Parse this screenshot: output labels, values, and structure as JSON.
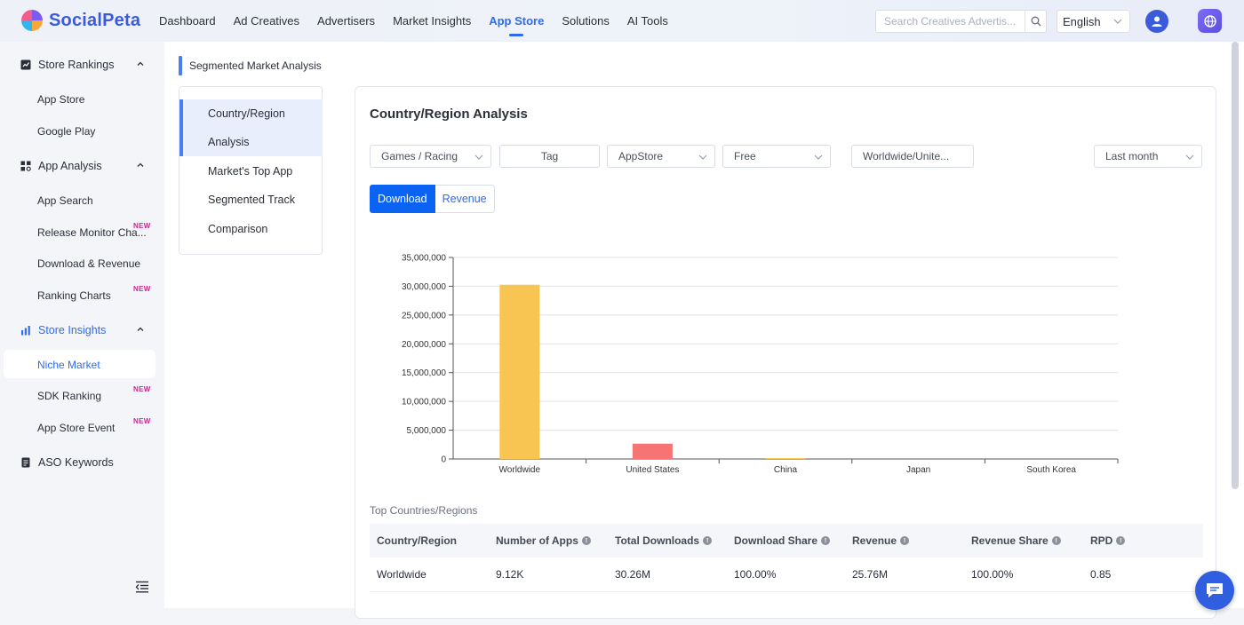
{
  "brand": {
    "name": "SocialPeta"
  },
  "nav": [
    {
      "label": "Dashboard",
      "active": false
    },
    {
      "label": "Ad Creatives",
      "active": false
    },
    {
      "label": "Advertisers",
      "active": false
    },
    {
      "label": "Market Insights",
      "active": false
    },
    {
      "label": "App Store",
      "active": true
    },
    {
      "label": "Solutions",
      "active": false
    },
    {
      "label": "AI Tools",
      "active": false
    }
  ],
  "search": {
    "placeholder": "Search Creatives Advertis...",
    "value": ""
  },
  "language": {
    "selected": "English"
  },
  "sidebar": {
    "store_rankings": {
      "label": "Store Rankings",
      "items": [
        "App Store",
        "Google Play"
      ]
    },
    "app_analysis": {
      "label": "App Analysis",
      "items": [
        "App Search",
        "Release Monitor Cha...",
        "Download & Revenue",
        "Ranking Charts"
      ]
    },
    "store_insights": {
      "label": "Store Insights",
      "items": [
        "Niche Market",
        "SDK Ranking",
        "App Store Event"
      ]
    },
    "aso": {
      "label": "ASO Keywords"
    },
    "new_badge": "NEW"
  },
  "page": {
    "title": "Segmented Market Analysis",
    "submenu": [
      "Country/Region",
      "Analysis",
      "Market's Top App",
      "Segmented Track",
      "Comparison"
    ]
  },
  "card": {
    "title": "Country/Region Analysis",
    "filters": {
      "category": "Games / Racing",
      "tag": "Tag",
      "store": "AppStore",
      "price": "Free",
      "region": "Worldwide/Unite...",
      "period": "Last month"
    },
    "toggle": {
      "download": "Download",
      "revenue": "Revenue",
      "selected": "Download"
    }
  },
  "chart_data": {
    "type": "bar",
    "categories": [
      "Worldwide",
      "United States",
      "China",
      "Japan",
      "South Korea"
    ],
    "values": [
      30260000,
      2660000,
      80000,
      0,
      0
    ],
    "ylim": [
      0,
      35000000
    ],
    "yticks": [
      "0",
      "5,000,000",
      "10,000,000",
      "15,000,000",
      "20,000,000",
      "25,000,000",
      "30,000,000",
      "35,000,000"
    ],
    "colors": [
      "#f8c552",
      "#f77474",
      "#f8c552",
      "#f8c552",
      "#f8c552"
    ],
    "grid": true,
    "title": "",
    "xlabel": "",
    "ylabel": ""
  },
  "table": {
    "caption": "Top Countries/Regions",
    "headers": [
      "Country/Region",
      "Number of Apps",
      "Total Downloads",
      "Download Share",
      "Revenue",
      "Revenue Share",
      "RPD"
    ],
    "rows": [
      [
        "Worldwide",
        "9.12K",
        "30.26M",
        "100.00%",
        "25.76M",
        "100.00%",
        "0.85"
      ]
    ]
  }
}
